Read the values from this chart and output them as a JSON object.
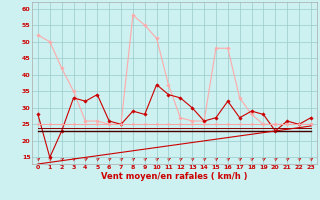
{
  "title": "",
  "xlabel": "Vent moyen/en rafales ( km/h )",
  "background_color": "#cdf0f0",
  "grid_color": "#99cccc",
  "x_ticks": [
    0,
    1,
    2,
    3,
    4,
    5,
    6,
    7,
    8,
    9,
    10,
    11,
    12,
    13,
    14,
    15,
    16,
    17,
    18,
    19,
    20,
    21,
    22,
    23
  ],
  "ylim": [
    13,
    62
  ],
  "yticks": [
    15,
    20,
    25,
    30,
    35,
    40,
    45,
    50,
    55,
    60
  ],
  "series": [
    {
      "name": "rafales_light",
      "color": "#ffaaaa",
      "linewidth": 0.8,
      "marker": "D",
      "markersize": 1.8,
      "values": [
        52,
        50,
        42,
        35,
        26,
        26,
        25,
        25,
        58,
        55,
        51,
        37,
        27,
        26,
        26,
        48,
        48,
        33,
        28,
        25,
        25,
        25,
        25,
        25
      ]
    },
    {
      "name": "vent_moyen_dark",
      "color": "#cc0000",
      "linewidth": 0.8,
      "marker": "D",
      "markersize": 1.8,
      "values": [
        28,
        15,
        23,
        33,
        32,
        34,
        26,
        25,
        29,
        28,
        37,
        34,
        33,
        30,
        26,
        27,
        32,
        27,
        29,
        28,
        23,
        26,
        25,
        27
      ]
    },
    {
      "name": "flat_dark1",
      "color": "#cc0000",
      "linewidth": 0.7,
      "marker": null,
      "markersize": 0,
      "values": [
        25,
        25,
        25,
        25,
        25,
        25,
        25,
        25,
        25,
        25,
        25,
        25,
        25,
        25,
        25,
        25,
        25,
        25,
        25,
        25,
        25,
        25,
        25,
        25
      ]
    },
    {
      "name": "flat_dark2",
      "color": "#880000",
      "linewidth": 0.7,
      "marker": null,
      "markersize": 0,
      "values": [
        24,
        24,
        24,
        24,
        24,
        24,
        24,
        24,
        24,
        24,
        24,
        24,
        24,
        24,
        24,
        24,
        24,
        24,
        24,
        24,
        24,
        24,
        24,
        24
      ]
    },
    {
      "name": "flat_dark3",
      "color": "#440000",
      "linewidth": 1.0,
      "marker": null,
      "markersize": 0,
      "values": [
        23,
        23,
        23,
        23,
        23,
        23,
        23,
        23,
        23,
        23,
        23,
        23,
        23,
        23,
        23,
        23,
        23,
        23,
        23,
        23,
        23,
        23,
        23,
        23
      ]
    },
    {
      "name": "flat_pink",
      "color": "#ffaaaa",
      "linewidth": 0.7,
      "marker": "D",
      "markersize": 1.5,
      "values": [
        25,
        25,
        25,
        25,
        25,
        25,
        25,
        25,
        25,
        25,
        25,
        25,
        25,
        25,
        25,
        25,
        25,
        25,
        25,
        25,
        25,
        25,
        25,
        25
      ]
    },
    {
      "name": "linear_rise",
      "color": "#cc0000",
      "linewidth": 0.8,
      "marker": null,
      "markersize": 0,
      "values": [
        13.0,
        13.5,
        14.0,
        14.5,
        15.0,
        15.5,
        16.0,
        16.5,
        17.0,
        17.5,
        18.0,
        18.5,
        19.0,
        19.5,
        20.0,
        20.5,
        21.0,
        21.5,
        22.0,
        22.5,
        23.0,
        23.5,
        24.0,
        24.5
      ]
    }
  ],
  "tick_label_color": "#cc0000",
  "xlabel_color": "#cc0000",
  "tick_fontsize": 4.5,
  "xlabel_fontsize": 6.0
}
